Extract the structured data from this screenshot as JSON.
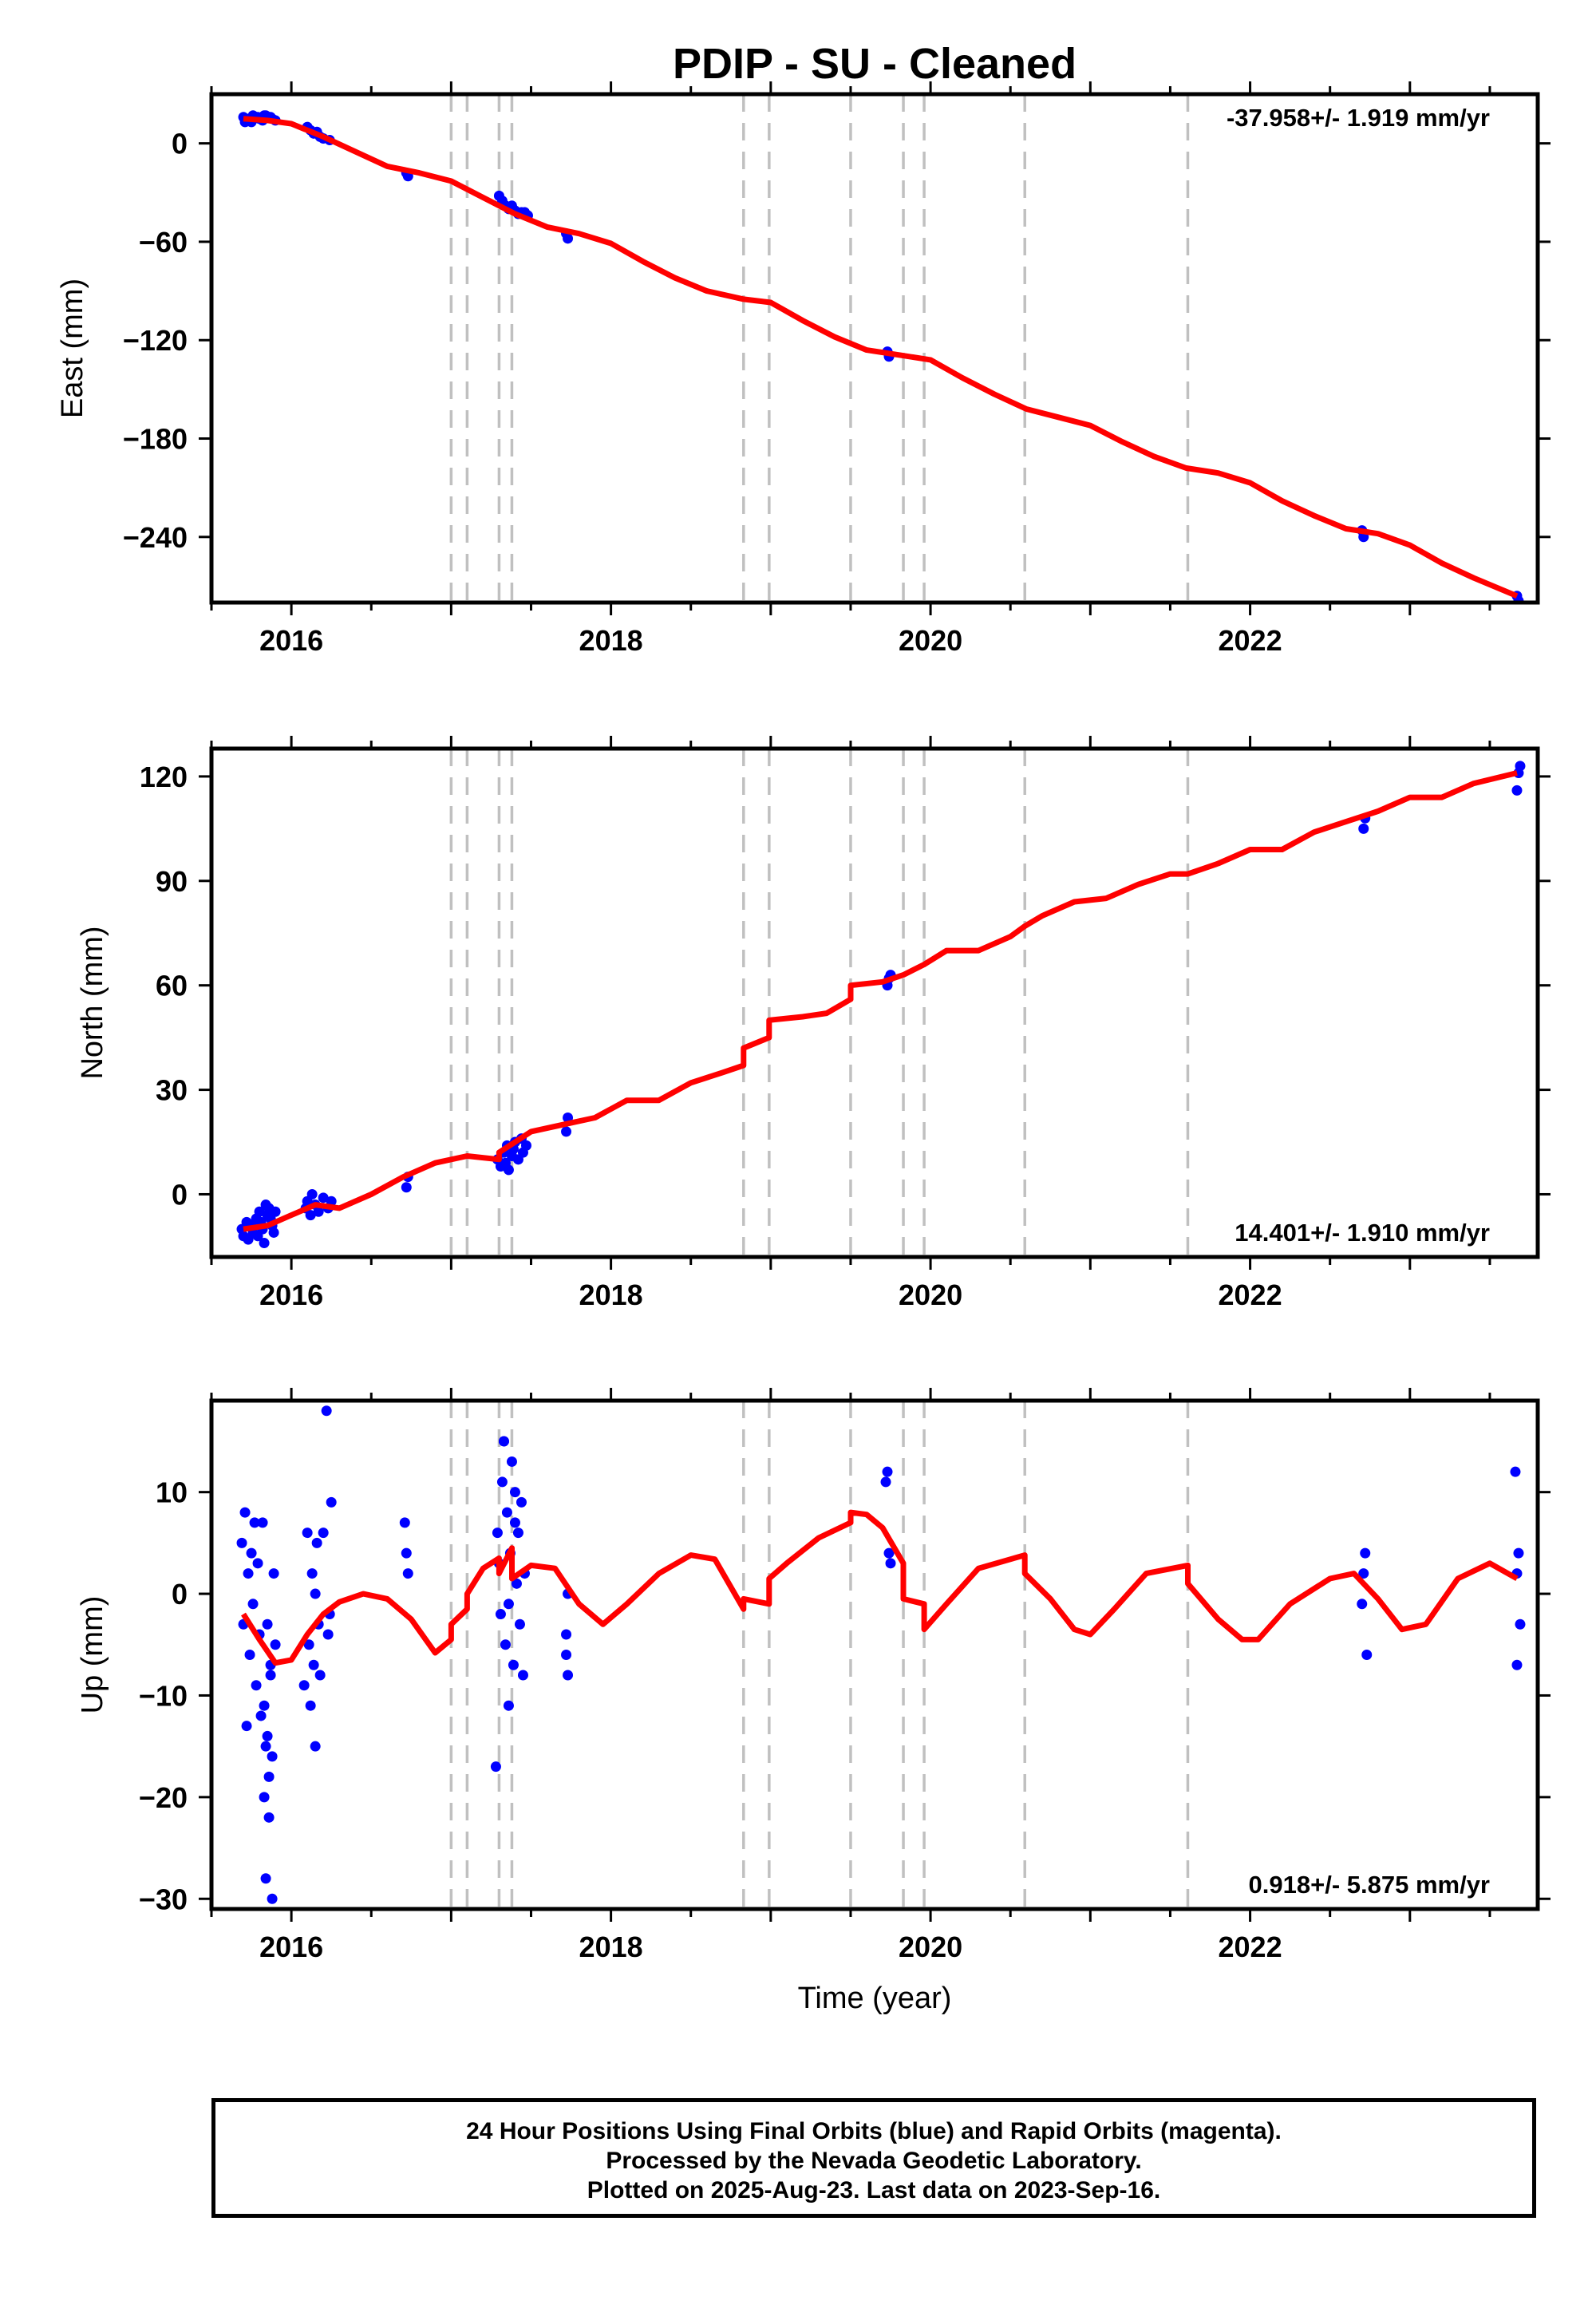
{
  "title": "PDIP  - SU - Cleaned",
  "xlabel": "Time (year)",
  "footer": {
    "line1": "24 Hour Positions Using Final Orbits (blue) and Rapid Orbits (magenta).",
    "line2": "Processed by the Nevada Geodetic Laboratory.",
    "line3": "Plotted on 2025-Aug-23. Last data on 2023-Sep-16."
  },
  "colors": {
    "observations": "#0000ff",
    "model": "#ff0000",
    "steps": "#c0c0c0",
    "frame": "#000000"
  },
  "chart_data": [
    {
      "type": "scatter",
      "panel": "east",
      "ylabel": "East (mm)",
      "rate": "-37.958+/- 1.919 mm/yr",
      "xlim": [
        2015.5,
        2023.8
      ],
      "ylim": [
        -280,
        30
      ],
      "xticks": [
        2016,
        2018,
        2020,
        2022
      ],
      "yticks": [
        -240,
        -180,
        -120,
        -60,
        0
      ],
      "steps": [
        2017.0,
        2017.1,
        2017.3,
        2017.38,
        2018.83,
        2018.99,
        2019.5,
        2019.83,
        2019.96,
        2020.59,
        2021.61
      ],
      "observations": {
        "x": [
          2015.7,
          2015.72,
          2015.74,
          2015.76,
          2015.78,
          2015.8,
          2015.82,
          2015.84,
          2015.86,
          2015.88,
          2015.9,
          2015.71,
          2015.75,
          2015.79,
          2015.83,
          2015.87,
          2016.1,
          2016.12,
          2016.14,
          2016.16,
          2016.18,
          2016.2,
          2016.24,
          2016.72,
          2016.73,
          2017.3,
          2017.32,
          2017.34,
          2017.36,
          2017.38,
          2017.4,
          2017.42,
          2017.44,
          2017.46,
          2017.48,
          2017.72,
          2017.73,
          2019.73,
          2019.74,
          2022.7,
          2022.71,
          2023.67,
          2023.68
        ],
        "y": [
          16,
          15,
          14,
          17,
          16,
          15,
          14,
          17,
          16,
          15,
          14,
          13,
          13,
          16,
          17,
          16,
          10,
          8,
          6,
          7,
          4,
          3,
          2,
          -18,
          -20,
          -32,
          -35,
          -38,
          -40,
          -38,
          -41,
          -43,
          -42,
          -42,
          -44,
          -55,
          -58,
          -127,
          -130,
          -236,
          -240,
          -276,
          -279
        ]
      },
      "model": {
        "x": [
          2015.7,
          2015.85,
          2016.0,
          2016.2,
          2016.4,
          2016.6,
          2016.8,
          2017.0,
          2017.2,
          2017.4,
          2017.6,
          2017.8,
          2018.0,
          2018.2,
          2018.4,
          2018.6,
          2018.83,
          2019.0,
          2019.2,
          2019.4,
          2019.6,
          2019.8,
          2020.0,
          2020.2,
          2020.4,
          2020.6,
          2020.8,
          2021.0,
          2021.2,
          2021.4,
          2021.6,
          2021.8,
          2022.0,
          2022.2,
          2022.4,
          2022.6,
          2022.8,
          2023.0,
          2023.2,
          2023.4,
          2023.67
        ],
        "y": [
          15,
          14,
          12,
          4,
          -5,
          -14,
          -18,
          -23,
          -33,
          -43,
          -51,
          -55,
          -61,
          -72,
          -82,
          -90,
          -95,
          -97,
          -108,
          -118,
          -126,
          -129,
          -132,
          -143,
          -153,
          -162,
          -167,
          -172,
          -182,
          -191,
          -198,
          -201,
          -207,
          -218,
          -227,
          -235,
          -238,
          -245,
          -256,
          -265,
          -276
        ]
      }
    },
    {
      "type": "scatter",
      "panel": "north",
      "ylabel": "North (mm)",
      "rate": "14.401+/- 1.910 mm/yr",
      "xlim": [
        2015.5,
        2023.8
      ],
      "ylim": [
        -18,
        128
      ],
      "xticks": [
        2016,
        2018,
        2020,
        2022
      ],
      "yticks": [
        0,
        30,
        60,
        90,
        120
      ],
      "steps": [
        2017.0,
        2017.1,
        2017.3,
        2017.38,
        2018.83,
        2018.99,
        2019.5,
        2019.83,
        2019.96,
        2020.59,
        2021.61
      ],
      "observations": {
        "x": [
          2015.69,
          2015.7,
          2015.72,
          2015.73,
          2015.75,
          2015.76,
          2015.78,
          2015.79,
          2015.8,
          2015.82,
          2015.83,
          2015.85,
          2015.86,
          2015.88,
          2015.89,
          2015.9,
          2015.81,
          2015.84,
          2015.87,
          2016.09,
          2016.1,
          2016.12,
          2016.13,
          2016.15,
          2016.17,
          2016.2,
          2016.23,
          2016.25,
          2016.72,
          2016.73,
          2017.29,
          2017.31,
          2017.33,
          2017.34,
          2017.35,
          2017.36,
          2017.38,
          2017.39,
          2017.4,
          2017.42,
          2017.44,
          2017.45,
          2017.47,
          2017.72,
          2017.73,
          2019.73,
          2019.74,
          2019.75,
          2022.71,
          2022.72,
          2023.67,
          2023.68,
          2023.69
        ],
        "y": [
          -10,
          -12,
          -8,
          -13,
          -9,
          -11,
          -7,
          -12,
          -5,
          -10,
          -14,
          -6,
          -4,
          -9,
          -11,
          -5,
          -8,
          -3,
          -7,
          -4,
          -2,
          -6,
          0,
          -3,
          -5,
          -1,
          -4,
          -2,
          2,
          5,
          10,
          8,
          12,
          9,
          14,
          7,
          11,
          13,
          15,
          10,
          16,
          12,
          14,
          18,
          22,
          60,
          62,
          63,
          105,
          108,
          116,
          121,
          123
        ]
      },
      "model": {
        "x": [
          2015.7,
          2015.85,
          2016.0,
          2016.15,
          2016.3,
          2016.5,
          2016.7,
          2016.9,
          2017.1,
          2017.3,
          2017.3,
          2017.5,
          2017.7,
          2017.9,
          2018.1,
          2018.3,
          2018.5,
          2018.7,
          2018.83,
          2018.83,
          2018.99,
          2018.99,
          2019.2,
          2019.35,
          2019.5,
          2019.5,
          2019.7,
          2019.83,
          2019.83,
          2019.96,
          2020.1,
          2020.3,
          2020.5,
          2020.59,
          2020.7,
          2020.9,
          2021.1,
          2021.3,
          2021.5,
          2021.61,
          2021.8,
          2022.0,
          2022.2,
          2022.4,
          2022.6,
          2022.8,
          2023.0,
          2023.2,
          2023.4,
          2023.67
        ],
        "y": [
          -10,
          -9,
          -6,
          -3,
          -4,
          0,
          5,
          9,
          11,
          10,
          12,
          18,
          20,
          22,
          27,
          27,
          32,
          35,
          37,
          42,
          45,
          50,
          51,
          52,
          56,
          60,
          61,
          63,
          63,
          66,
          70,
          70,
          74,
          77,
          80,
          84,
          85,
          89,
          92,
          92,
          95,
          99,
          99,
          104,
          107,
          110,
          114,
          114,
          118,
          121
        ]
      }
    },
    {
      "type": "scatter",
      "panel": "up",
      "ylabel": "Up (mm)",
      "rate": "0.918+/- 5.875 mm/yr",
      "xlim": [
        2015.5,
        2023.8
      ],
      "ylim": [
        -31,
        19
      ],
      "xticks": [
        2016,
        2018,
        2020,
        2022
      ],
      "yticks": [
        -30,
        -20,
        -10,
        0,
        10
      ],
      "steps": [
        2017.0,
        2017.1,
        2017.3,
        2017.38,
        2018.83,
        2018.99,
        2019.5,
        2019.83,
        2019.96,
        2020.59,
        2021.61
      ],
      "observations": {
        "x": [
          2015.69,
          2015.7,
          2015.71,
          2015.72,
          2015.73,
          2015.74,
          2015.75,
          2015.76,
          2015.77,
          2015.78,
          2015.79,
          2015.8,
          2015.81,
          2015.82,
          2015.83,
          2015.84,
          2015.85,
          2015.86,
          2015.87,
          2015.88,
          2015.89,
          2015.9,
          2015.84,
          2015.86,
          2015.88,
          2015.83,
          2015.85,
          2015.87,
          2016.08,
          2016.1,
          2016.11,
          2016.12,
          2016.13,
          2016.14,
          2016.15,
          2016.16,
          2016.17,
          2016.18,
          2016.2,
          2016.22,
          2016.23,
          2016.25,
          2016.24,
          2016.15,
          2016.71,
          2016.72,
          2016.73,
          2017.28,
          2017.29,
          2017.3,
          2017.31,
          2017.32,
          2017.33,
          2017.34,
          2017.35,
          2017.36,
          2017.37,
          2017.38,
          2017.39,
          2017.4,
          2017.41,
          2017.42,
          2017.43,
          2017.44,
          2017.45,
          2017.46,
          2017.33,
          2017.36,
          2017.4,
          2017.72,
          2017.73,
          2017.73,
          2017.72,
          2019.72,
          2019.73,
          2019.74,
          2019.75,
          2022.71,
          2022.72,
          2022.7,
          2022.73,
          2023.66,
          2023.67,
          2023.68,
          2023.69,
          2023.67
        ],
        "y": [
          5,
          -3,
          8,
          -13,
          2,
          -6,
          4,
          -1,
          7,
          -9,
          3,
          -4,
          -12,
          7,
          -20,
          -15,
          -3,
          -18,
          -8,
          -16,
          2,
          -5,
          -28,
          -22,
          -30,
          -11,
          -14,
          -7,
          -9,
          6,
          -5,
          -11,
          2,
          -7,
          -15,
          5,
          -3,
          -8,
          6,
          18,
          -4,
          9,
          -2,
          0,
          7,
          4,
          2,
          -17,
          6,
          3,
          -2,
          11,
          15,
          -5,
          8,
          -11,
          4,
          13,
          -7,
          10,
          1,
          6,
          -3,
          9,
          -8,
          2,
          15,
          -1,
          7,
          -6,
          0,
          -8,
          -4,
          11,
          12,
          4,
          3,
          2,
          4,
          -1,
          -6,
          12,
          2,
          4,
          -3,
          -7
        ]
      },
      "model": {
        "x": [
          2015.7,
          2015.8,
          2015.9,
          2016.0,
          2016.1,
          2016.2,
          2016.3,
          2016.45,
          2016.6,
          2016.75,
          2016.9,
          2017.0,
          2017.0,
          2017.1,
          2017.1,
          2017.2,
          2017.3,
          2017.3,
          2017.38,
          2017.38,
          2017.5,
          2017.65,
          2017.8,
          2017.95,
          2018.1,
          2018.3,
          2018.5,
          2018.65,
          2018.83,
          2018.83,
          2018.99,
          2018.99,
          2019.1,
          2019.3,
          2019.5,
          2019.5,
          2019.6,
          2019.7,
          2019.83,
          2019.83,
          2019.96,
          2019.96,
          2020.1,
          2020.3,
          2020.59,
          2020.59,
          2020.75,
          2020.9,
          2021.0,
          2021.15,
          2021.35,
          2021.61,
          2021.61,
          2021.8,
          2021.95,
          2022.05,
          2022.25,
          2022.5,
          2022.65,
          2022.8,
          2022.95,
          2023.1,
          2023.3,
          2023.5,
          2023.67
        ],
        "y": [
          -2,
          -4.5,
          -6.8,
          -6.5,
          -4,
          -2,
          -0.8,
          0,
          -0.5,
          -2.5,
          -5.8,
          -4.5,
          -3,
          -1.5,
          0,
          2.5,
          3.5,
          2,
          4.5,
          1.5,
          2.8,
          2.5,
          -1,
          -3,
          -1,
          2,
          3.8,
          3.4,
          -1.5,
          -0.5,
          -1,
          1.5,
          3,
          5.5,
          7,
          8,
          7.8,
          6.5,
          3,
          -0.5,
          -1,
          -3.5,
          -1,
          2.5,
          3.8,
          2,
          -0.5,
          -3.5,
          -4,
          -1.5,
          2,
          2.8,
          1,
          -2.5,
          -4.5,
          -4.5,
          -1,
          1.5,
          2,
          -0.5,
          -3.5,
          -3,
          1.5,
          3,
          1.5
        ]
      }
    }
  ]
}
